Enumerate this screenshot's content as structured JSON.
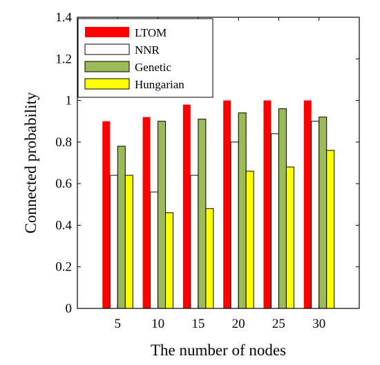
{
  "chart_data": {
    "type": "bar",
    "title": "",
    "xlabel": "The number of nodes",
    "ylabel": "Connected probability",
    "categories": [
      "5",
      "10",
      "15",
      "20",
      "25",
      "30"
    ],
    "ylim": [
      0,
      1.4
    ],
    "yticks": [
      "0",
      "0.2",
      "0.4",
      "0.6",
      "0.8",
      "1",
      "1.2",
      "1.4"
    ],
    "grid": false,
    "legend_position": "top-left",
    "series": [
      {
        "name": "LTOM",
        "color": "#ff0000",
        "values": [
          0.9,
          0.92,
          0.98,
          1.0,
          1.0,
          1.0
        ]
      },
      {
        "name": "NNR",
        "color": "#ffffff",
        "values": [
          0.64,
          0.56,
          0.64,
          0.8,
          0.84,
          0.9
        ]
      },
      {
        "name": "Genetic",
        "color": "#9bbb59",
        "values": [
          0.78,
          0.9,
          0.91,
          0.94,
          0.96,
          0.92
        ]
      },
      {
        "name": "Hungarian",
        "color": "#ffff00",
        "values": [
          0.64,
          0.46,
          0.48,
          0.66,
          0.68,
          0.76
        ]
      }
    ]
  }
}
